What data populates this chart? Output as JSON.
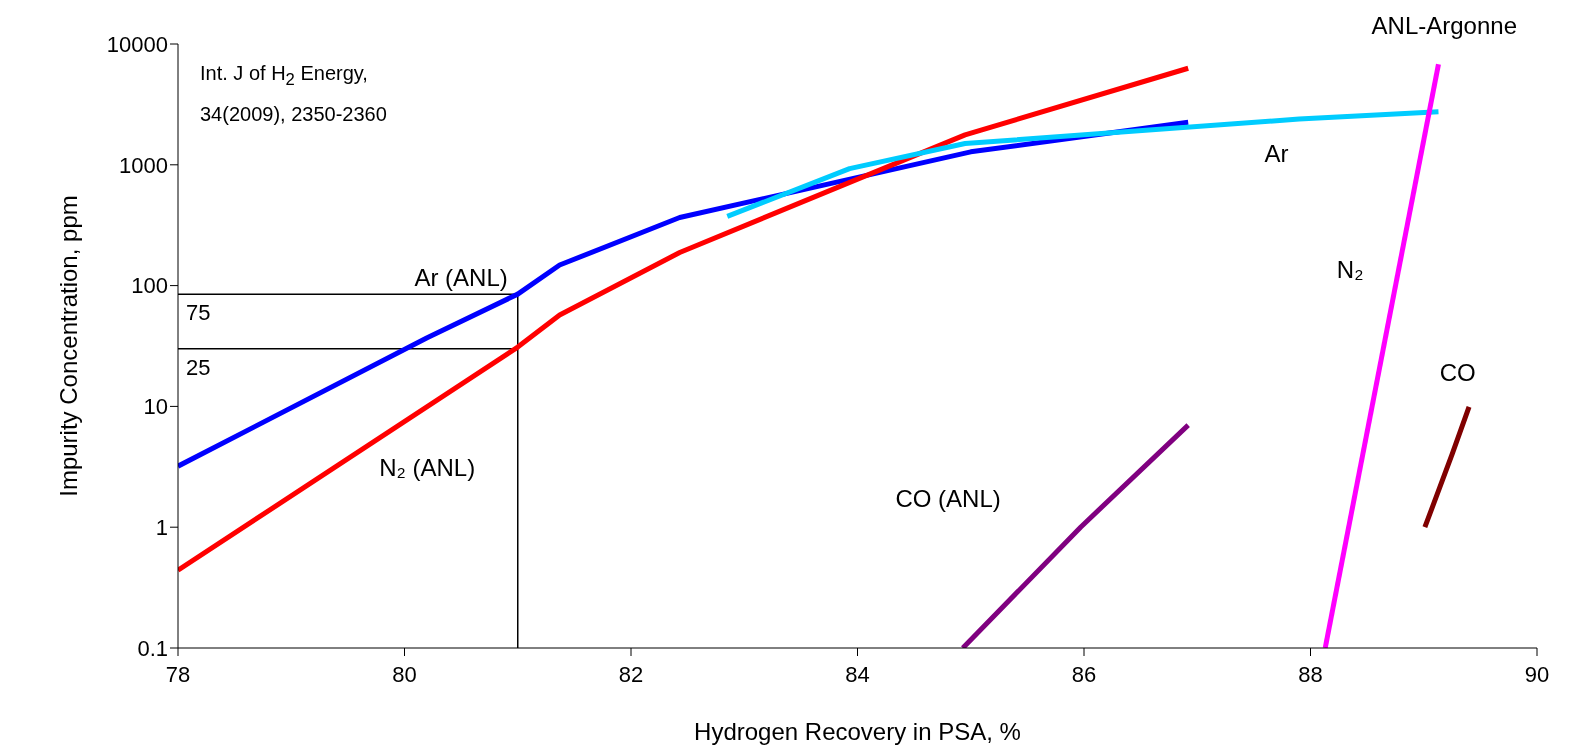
{
  "chart_data": {
    "type": "line",
    "xlabel": "Hydrogen Recovery in PSA, %",
    "ylabel": "Impurity Concentration, ppm",
    "annotations": [
      "Int. J of H$_{2}$ Energy,\n34(2009), 2350-2360",
      "ANL-Argonne",
      {
        "text": "75",
        "x": 78,
        "y": 85
      },
      {
        "text": "25",
        "x": 78,
        "y": 30
      }
    ],
    "series": [
      {
        "name": "Ar (ANL)",
        "color": "#0000ff",
        "x": [
          78,
          80.2,
          81,
          81.37,
          82.43,
          85,
          86.92
        ],
        "values": [
          3.2,
          37,
          85,
          148,
          366,
          1280,
          2250
        ]
      },
      {
        "name": "N₂ (ANL)",
        "color": "#ff0000",
        "x": [
          78,
          81,
          81.37,
          82.43,
          84.95,
          86.92
        ],
        "values": [
          0.44,
          31,
          57,
          188,
          1770,
          6300
        ]
      },
      {
        "name": "Ar",
        "color": "#00ccff",
        "x": [
          82.85,
          83.93,
          84.95,
          87.9,
          89.13
        ],
        "values": [
          374,
          930,
          1500,
          2390,
          2750
        ]
      },
      {
        "name": "CO (ANL)",
        "color": "#800080",
        "x": [
          84.93,
          85.97,
          86.92
        ],
        "values": [
          0.1,
          1,
          7
        ]
      },
      {
        "name": "N₂",
        "color": "#ff00ff",
        "x": [
          88.13,
          89.13
        ],
        "values": [
          0.1,
          6800
        ]
      },
      {
        "name": "CO",
        "color": "#800000",
        "x": [
          89.01,
          89.25,
          89.4
        ],
        "values": [
          1,
          4,
          9.9
        ]
      }
    ],
    "ref_lines": [
      {
        "axis": "y",
        "value": 85,
        "color": "#000000"
      },
      {
        "axis": "y",
        "value": 30,
        "color": "#000000"
      },
      {
        "axis": "x",
        "value": 81,
        "color": "#000000"
      }
    ],
    "xlim": [
      78,
      90
    ],
    "xticks": [
      78,
      80,
      82,
      84,
      86,
      88,
      90
    ],
    "ylim": [
      0.1,
      10000
    ],
    "yticks": [
      0.1,
      1,
      10,
      100,
      1000,
      10000
    ],
    "log": "y",
    "marker": "none",
    "line_style": "solid"
  }
}
